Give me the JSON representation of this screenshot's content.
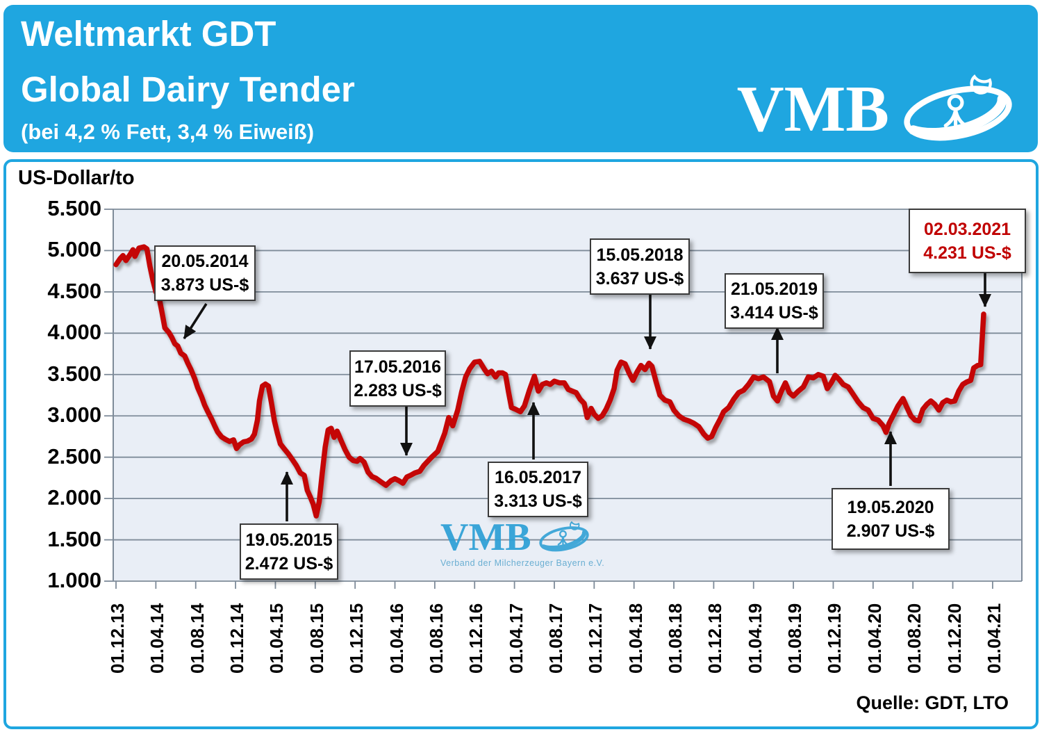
{
  "header": {
    "title_line1": "Weltmarkt GDT",
    "title_line2": "Global Dairy Tender",
    "subtitle": "(bei 4,2 % Fett, 3,4 % Eiweiß)",
    "logo_text": "VMB",
    "brand_color": "#1FA6E0"
  },
  "watermark": {
    "text": "VMB",
    "subtext": "Verband der Milcherzeuger Bayern e.V."
  },
  "chart": {
    "axis_unit": "US-Dollar/to",
    "source": "Quelle: GDT, LTO"
  },
  "chart_data": {
    "type": "line",
    "title": "Weltmarkt GDT Global Dairy Tender (bei 4,2 % Fett, 3,4 % Eiweiß)",
    "ylabel": "US-Dollar/to",
    "ylim": [
      1000,
      5500
    ],
    "grid": true,
    "y_ticks": [
      "5.500",
      "5.000",
      "4.500",
      "4.000",
      "3.500",
      "3.000",
      "2.500",
      "2.000",
      "1.500",
      "1.000"
    ],
    "x_tick_labels": [
      "01.12.13",
      "01.04.14",
      "01.08.14",
      "01.12.14",
      "01.04.15",
      "01.08.15",
      "01.12.15",
      "01.04.16",
      "01.08.16",
      "01.12.16",
      "01.04.17",
      "01.08.17",
      "01.12.17",
      "01.04.18",
      "01.08.18",
      "01.12.18",
      "01.04.19",
      "01.08.19",
      "01.12.19",
      "01.04.20",
      "01.08.20",
      "01.12.20",
      "01.04.21"
    ],
    "x_unit": "Monate ab 01.12.2013 (Ticks alle 4 Monate)",
    "series": [
      {
        "name": "GDT Preis US-Dollar/to",
        "color": "#C40606",
        "points": [
          [
            0,
            4830
          ],
          [
            0.4,
            4900
          ],
          [
            0.7,
            4940
          ],
          [
            1,
            4880
          ],
          [
            1.4,
            4950
          ],
          [
            1.7,
            5010
          ],
          [
            1.9,
            4930
          ],
          [
            2.3,
            5030
          ],
          [
            2.8,
            5045
          ],
          [
            3.1,
            5020
          ],
          [
            3.4,
            4810
          ],
          [
            3.7,
            4640
          ],
          [
            4,
            4500
          ],
          [
            4.3,
            4445
          ],
          [
            4.6,
            4260
          ],
          [
            4.9,
            4065
          ],
          [
            5.3,
            4010
          ],
          [
            5.6,
            3950
          ],
          [
            5.9,
            3873
          ],
          [
            6.2,
            3845
          ],
          [
            6.5,
            3760
          ],
          [
            6.9,
            3725
          ],
          [
            7.2,
            3640
          ],
          [
            7.5,
            3565
          ],
          [
            7.9,
            3450
          ],
          [
            8.2,
            3340
          ],
          [
            8.6,
            3230
          ],
          [
            8.9,
            3130
          ],
          [
            9.2,
            3055
          ],
          [
            9.6,
            2960
          ],
          [
            9.9,
            2880
          ],
          [
            10.2,
            2805
          ],
          [
            10.6,
            2745
          ],
          [
            11,
            2715
          ],
          [
            11.4,
            2690
          ],
          [
            11.8,
            2710
          ],
          [
            12.1,
            2605
          ],
          [
            12.4,
            2650
          ],
          [
            12.8,
            2685
          ],
          [
            13.2,
            2695
          ],
          [
            13.6,
            2720
          ],
          [
            13.9,
            2780
          ],
          [
            14.2,
            2950
          ],
          [
            14.4,
            3180
          ],
          [
            14.7,
            3360
          ],
          [
            15,
            3385
          ],
          [
            15.3,
            3360
          ],
          [
            15.6,
            3160
          ],
          [
            15.9,
            2940
          ],
          [
            16.2,
            2790
          ],
          [
            16.5,
            2660
          ],
          [
            16.9,
            2600
          ],
          [
            17.3,
            2540
          ],
          [
            17.7,
            2472
          ],
          [
            18.1,
            2400
          ],
          [
            18.5,
            2310
          ],
          [
            18.9,
            2280
          ],
          [
            19.2,
            2100
          ],
          [
            19.5,
            2020
          ],
          [
            19.8,
            1930
          ],
          [
            20.1,
            1790
          ],
          [
            20.4,
            1960
          ],
          [
            20.7,
            2300
          ],
          [
            21,
            2620
          ],
          [
            21.3,
            2830
          ],
          [
            21.6,
            2850
          ],
          [
            21.9,
            2740
          ],
          [
            22.2,
            2815
          ],
          [
            22.6,
            2700
          ],
          [
            23,
            2590
          ],
          [
            23.4,
            2500
          ],
          [
            23.8,
            2460
          ],
          [
            24.2,
            2450
          ],
          [
            24.5,
            2485
          ],
          [
            24.9,
            2440
          ],
          [
            25.3,
            2320
          ],
          [
            25.7,
            2265
          ],
          [
            26.1,
            2245
          ],
          [
            26.6,
            2200
          ],
          [
            27.1,
            2160
          ],
          [
            27.6,
            2215
          ],
          [
            28,
            2240
          ],
          [
            28.4,
            2215
          ],
          [
            28.8,
            2185
          ],
          [
            29.2,
            2260
          ],
          [
            29.6,
            2283
          ],
          [
            30,
            2310
          ],
          [
            30.5,
            2330
          ],
          [
            30.9,
            2400
          ],
          [
            31.6,
            2490
          ],
          [
            32.3,
            2570
          ],
          [
            33,
            2790
          ],
          [
            33.4,
            2980
          ],
          [
            33.8,
            2880
          ],
          [
            34.3,
            3070
          ],
          [
            34.7,
            3290
          ],
          [
            35.1,
            3470
          ],
          [
            35.5,
            3570
          ],
          [
            36,
            3650
          ],
          [
            36.5,
            3660
          ],
          [
            37,
            3560
          ],
          [
            37.3,
            3510
          ],
          [
            37.7,
            3540
          ],
          [
            38.1,
            3470
          ],
          [
            38.4,
            3520
          ],
          [
            38.8,
            3520
          ],
          [
            39.1,
            3500
          ],
          [
            39.4,
            3290
          ],
          [
            39.7,
            3100
          ],
          [
            40.1,
            3080
          ],
          [
            40.6,
            3050
          ],
          [
            41,
            3120
          ],
          [
            41.5,
            3310
          ],
          [
            42,
            3480
          ],
          [
            42.4,
            3300
          ],
          [
            42.8,
            3380
          ],
          [
            43.2,
            3400
          ],
          [
            43.6,
            3380
          ],
          [
            44,
            3420
          ],
          [
            44.5,
            3400
          ],
          [
            45,
            3400
          ],
          [
            45.4,
            3320
          ],
          [
            45.8,
            3300
          ],
          [
            46.2,
            3280
          ],
          [
            46.6,
            3200
          ],
          [
            47,
            3150
          ],
          [
            47.3,
            2980
          ],
          [
            47.7,
            3090
          ],
          [
            48,
            3020
          ],
          [
            48.4,
            2970
          ],
          [
            48.8,
            3000
          ],
          [
            49.2,
            3080
          ],
          [
            49.6,
            3190
          ],
          [
            50,
            3330
          ],
          [
            50.3,
            3550
          ],
          [
            50.7,
            3650
          ],
          [
            51.1,
            3630
          ],
          [
            51.5,
            3520
          ],
          [
            51.9,
            3430
          ],
          [
            52.3,
            3530
          ],
          [
            52.7,
            3610
          ],
          [
            53.1,
            3560
          ],
          [
            53.5,
            3637
          ],
          [
            53.8,
            3600
          ],
          [
            54.2,
            3420
          ],
          [
            54.6,
            3250
          ],
          [
            55.1,
            3190
          ],
          [
            55.6,
            3170
          ],
          [
            56,
            3070
          ],
          [
            56.5,
            3000
          ],
          [
            57,
            2960
          ],
          [
            57.5,
            2940
          ],
          [
            58,
            2910
          ],
          [
            58.5,
            2870
          ],
          [
            59,
            2780
          ],
          [
            59.4,
            2730
          ],
          [
            59.8,
            2750
          ],
          [
            60.2,
            2860
          ],
          [
            60.6,
            2950
          ],
          [
            61,
            3050
          ],
          [
            61.5,
            3100
          ],
          [
            62,
            3200
          ],
          [
            62.5,
            3280
          ],
          [
            63,
            3310
          ],
          [
            63.5,
            3380
          ],
          [
            64,
            3470
          ],
          [
            64.5,
            3450
          ],
          [
            65,
            3470
          ],
          [
            65.6,
            3414
          ],
          [
            66,
            3240
          ],
          [
            66.4,
            3180
          ],
          [
            66.8,
            3300
          ],
          [
            67.2,
            3400
          ],
          [
            67.6,
            3280
          ],
          [
            68,
            3240
          ],
          [
            68.5,
            3300
          ],
          [
            69,
            3350
          ],
          [
            69.5,
            3470
          ],
          [
            70,
            3460
          ],
          [
            70.5,
            3500
          ],
          [
            71,
            3480
          ],
          [
            71.4,
            3330
          ],
          [
            71.8,
            3400
          ],
          [
            72.2,
            3490
          ],
          [
            72.6,
            3440
          ],
          [
            73,
            3380
          ],
          [
            73.5,
            3350
          ],
          [
            74,
            3260
          ],
          [
            74.5,
            3170
          ],
          [
            75,
            3100
          ],
          [
            75.5,
            3070
          ],
          [
            76,
            2970
          ],
          [
            76.5,
            2950
          ],
          [
            77,
            2880
          ],
          [
            77.3,
            2800
          ],
          [
            77.6,
            2907
          ],
          [
            78,
            3000
          ],
          [
            78.5,
            3120
          ],
          [
            79,
            3210
          ],
          [
            79.4,
            3100
          ],
          [
            79.8,
            3000
          ],
          [
            80.2,
            2950
          ],
          [
            80.6,
            2940
          ],
          [
            81,
            3080
          ],
          [
            81.4,
            3140
          ],
          [
            81.8,
            3180
          ],
          [
            82.2,
            3140
          ],
          [
            82.6,
            3070
          ],
          [
            83,
            3160
          ],
          [
            83.4,
            3190
          ],
          [
            83.8,
            3170
          ],
          [
            84.2,
            3180
          ],
          [
            84.6,
            3300
          ],
          [
            85,
            3380
          ],
          [
            85.4,
            3410
          ],
          [
            85.8,
            3430
          ],
          [
            86.1,
            3580
          ],
          [
            86.5,
            3610
          ],
          [
            86.8,
            3620
          ],
          [
            87.1,
            4231
          ]
        ]
      }
    ],
    "annotations": [
      {
        "date": "20.05.2014",
        "label": "3.873 US-$",
        "value": 3873
      },
      {
        "date": "19.05.2015",
        "label": "2.472 US-$",
        "value": 2472
      },
      {
        "date": "17.05.2016",
        "label": "2.283 US-$",
        "value": 2283
      },
      {
        "date": "16.05.2017",
        "label": "3.313 US-$",
        "value": 3313
      },
      {
        "date": "15.05.2018",
        "label": "3.637 US-$",
        "value": 3637
      },
      {
        "date": "21.05.2019",
        "label": "3.414 US-$",
        "value": 3414
      },
      {
        "date": "19.05.2020",
        "label": "2.907 US-$",
        "value": 2907
      },
      {
        "date": "02.03.2021",
        "label": "4.231 US-$",
        "value": 4231,
        "highlight": true
      }
    ],
    "legend": "none"
  }
}
